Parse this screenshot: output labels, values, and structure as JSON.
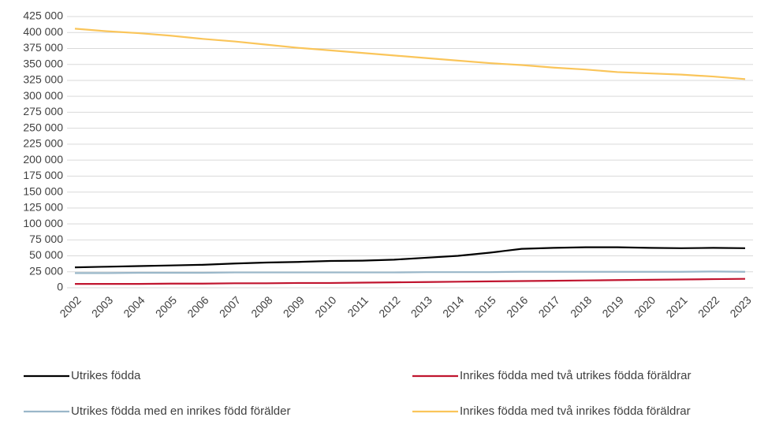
{
  "chart_data": {
    "type": "line",
    "x": [
      "2002",
      "2003",
      "2004",
      "2005",
      "2006",
      "2007",
      "2008",
      "2009",
      "2010",
      "2011",
      "2012",
      "2013",
      "2014",
      "2015",
      "2016",
      "2017",
      "2018",
      "2019",
      "2020",
      "2021",
      "2022",
      "2023"
    ],
    "series": [
      {
        "name": "Utrikes födda",
        "color": "#000000",
        "values": [
          32000,
          33000,
          34000,
          35000,
          36000,
          38000,
          39500,
          40500,
          42000,
          42500,
          44000,
          47000,
          50000,
          55000,
          61000,
          62500,
          63500,
          63500,
          62500,
          62000,
          62500,
          62000
        ]
      },
      {
        "name": "Inrikes födda med två utrikes födda föräldrar",
        "color": "#c0152f",
        "values": [
          6000,
          6000,
          6000,
          6500,
          6500,
          7000,
          7000,
          7500,
          7500,
          8000,
          8500,
          9000,
          9500,
          10000,
          10500,
          11000,
          11500,
          12000,
          12500,
          13000,
          13500,
          14000
        ]
      },
      {
        "name": "Utrikes födda med en inrikes född förälder",
        "color": "#9ab7c9",
        "values": [
          23000,
          23000,
          23500,
          23500,
          23500,
          24000,
          24000,
          24000,
          24000,
          24000,
          24000,
          24500,
          24500,
          24500,
          25000,
          25000,
          25000,
          25000,
          25000,
          25000,
          25500,
          25000
        ]
      },
      {
        "name": "Inrikes födda med två inrikes födda föräldrar",
        "color": "#fac55a",
        "values": [
          406000,
          402000,
          399000,
          395000,
          390000,
          386000,
          381000,
          376000,
          372000,
          368000,
          364000,
          360000,
          356000,
          352000,
          349000,
          345000,
          342000,
          338000,
          336000,
          334000,
          331000,
          327000
        ]
      }
    ],
    "ylim": [
      0,
      425000
    ],
    "yticks": [
      0,
      {
        "value": 25000,
        "label": "25 000"
      },
      {
        "value": 50000,
        "label": "50 000"
      },
      {
        "value": 75000,
        "label": "75 000"
      },
      {
        "value": 100000,
        "label": "100 000"
      },
      {
        "value": 125000,
        "label": "125 000"
      },
      {
        "value": 150000,
        "label": "150 000"
      },
      {
        "value": 175000,
        "label": "175 000"
      },
      {
        "value": 200000,
        "label": "200 000"
      },
      {
        "value": 225000,
        "label": "225 000"
      },
      {
        "value": 250000,
        "label": "250 000"
      },
      {
        "value": 275000,
        "label": "275 000"
      },
      {
        "value": 300000,
        "label": "300 000"
      },
      {
        "value": 325000,
        "label": "325 000"
      },
      {
        "value": 350000,
        "label": "350 000"
      },
      {
        "value": 375000,
        "label": "375 000"
      },
      {
        "value": 400000,
        "label": "400 000"
      },
      {
        "value": 425000,
        "label": "425 000"
      }
    ],
    "grid": true
  }
}
